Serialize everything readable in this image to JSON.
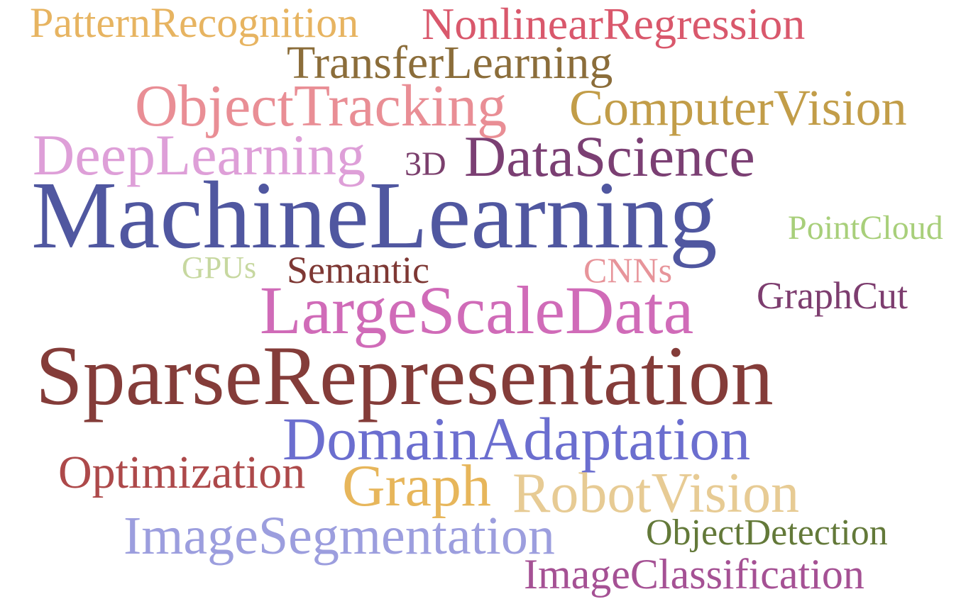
{
  "words": [
    {
      "text": "PatternRecognition",
      "color": "#e7b461"
    },
    {
      "text": "NonlinearRegression",
      "color": "#d9586c"
    },
    {
      "text": "TransferLearning",
      "color": "#8b6d3a"
    },
    {
      "text": "ObjectTracking",
      "color": "#e98e95"
    },
    {
      "text": "ComputerVision",
      "color": "#c29d48"
    },
    {
      "text": "DeepLearning",
      "color": "#de9fd8"
    },
    {
      "text": "3D",
      "color": "#7b3f6d"
    },
    {
      "text": "DataScience",
      "color": "#7b3f73"
    },
    {
      "text": "MachineLearning",
      "color": "#5057a0"
    },
    {
      "text": "PointCloud",
      "color": "#a8cf7a"
    },
    {
      "text": "GPUs",
      "color": "#c7d8a0"
    },
    {
      "text": "Semantic",
      "color": "#7e3834"
    },
    {
      "text": "CNNs",
      "color": "#e7949a"
    },
    {
      "text": "GraphCut",
      "color": "#7d3d6f"
    },
    {
      "text": "LargeScaleData",
      "color": "#d06bb8"
    },
    {
      "text": "SparseRepresentation",
      "color": "#843c39"
    },
    {
      "text": "DomainAdaptation",
      "color": "#6b6ecf"
    },
    {
      "text": "Optimization",
      "color": "#ad494a"
    },
    {
      "text": "Graph",
      "color": "#e7b65b"
    },
    {
      "text": "RobotVision",
      "color": "#e7cb94"
    },
    {
      "text": "ImageSegmentation",
      "color": "#9c9ede"
    },
    {
      "text": "ObjectDetection",
      "color": "#637939"
    },
    {
      "text": "ImageClassification",
      "color": "#a55194"
    }
  ]
}
